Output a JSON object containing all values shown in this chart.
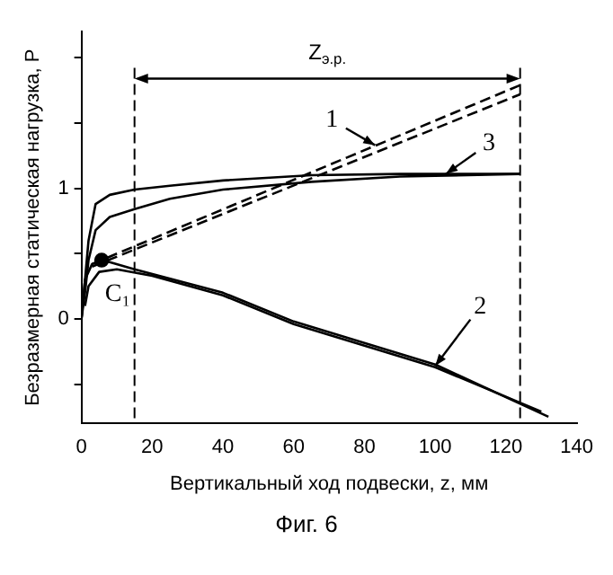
{
  "chart_data": {
    "type": "line",
    "xlabel": "Вертикальный ход подвески, z, мм",
    "ylabel": "Безразмерная статическая нагрузка, P",
    "xlim": [
      0,
      140
    ],
    "xticks": [
      0,
      20,
      40,
      60,
      80,
      100,
      120,
      140
    ],
    "ylim": [
      -0.8,
      2.2
    ],
    "yticks": [
      {
        "value": -0.5,
        "label": null
      },
      0,
      {
        "value": 0.5,
        "label": null
      },
      1,
      {
        "value": 1.5,
        "label": null
      },
      {
        "value": 2,
        "label": null
      }
    ],
    "grid": false,
    "legend": false,
    "marker": "none",
    "series": [
      {
        "color": "#000000",
        "line_style": "dashed",
        "x": [
          3,
          124
        ],
        "values": [
          0.42,
          1.79
        ]
      },
      {
        "color": "#000000",
        "line_style": "dashed",
        "x": [
          3,
          124
        ],
        "values": [
          0.4,
          1.72
        ]
      },
      {
        "color": "#000000",
        "line_style": "solid",
        "x": [
          0,
          1,
          2,
          4,
          8,
          15,
          25,
          40,
          65,
          90,
          124
        ],
        "values": [
          0,
          0.3,
          0.6,
          0.88,
          0.95,
          0.99,
          1.02,
          1.06,
          1.1,
          1.11,
          1.11
        ]
      },
      {
        "color": "#000000",
        "line_style": "solid",
        "x": [
          0,
          1,
          2,
          4,
          8,
          15,
          25,
          40,
          65,
          90,
          124
        ],
        "values": [
          0,
          0.2,
          0.45,
          0.68,
          0.78,
          0.84,
          0.92,
          0.99,
          1.05,
          1.09,
          1.11
        ]
      },
      {
        "color": "#000000",
        "line_style": "solid",
        "x": [
          0,
          1,
          3,
          6,
          15,
          40,
          60,
          100,
          132
        ],
        "values": [
          0,
          0.3,
          0.42,
          0.45,
          0.38,
          0.2,
          -0.02,
          -0.35,
          -0.75
        ]
      },
      {
        "color": "#000000",
        "line_style": "solid",
        "x": [
          1,
          2,
          5,
          10,
          20,
          40,
          60,
          100,
          130
        ],
        "values": [
          0.1,
          0.25,
          0.36,
          0.38,
          0.33,
          0.18,
          -0.04,
          -0.37,
          -0.71
        ]
      },
      {
        "type": "scatter",
        "marker": "circle",
        "color": "#000000",
        "x": [
          5.7
        ],
        "values": [
          0.45
        ]
      }
    ],
    "ref_lines": [
      {
        "axis": "x",
        "value": 15,
        "line_style": "dashed"
      },
      {
        "axis": "x",
        "value": 124,
        "line_style": "dashed"
      }
    ],
    "annotations": [
      {
        "text": "1",
        "x": 83,
        "y": 1.33
      },
      {
        "text": "3",
        "x": 103,
        "y": 1.11
      },
      {
        "text": "2",
        "x": 100,
        "y": -0.36
      },
      {
        "text": "C₁",
        "x": 5.7,
        "y": 0.45
      },
      "Z$_{э.р.}$",
      "Фиг. 6"
    ]
  }
}
